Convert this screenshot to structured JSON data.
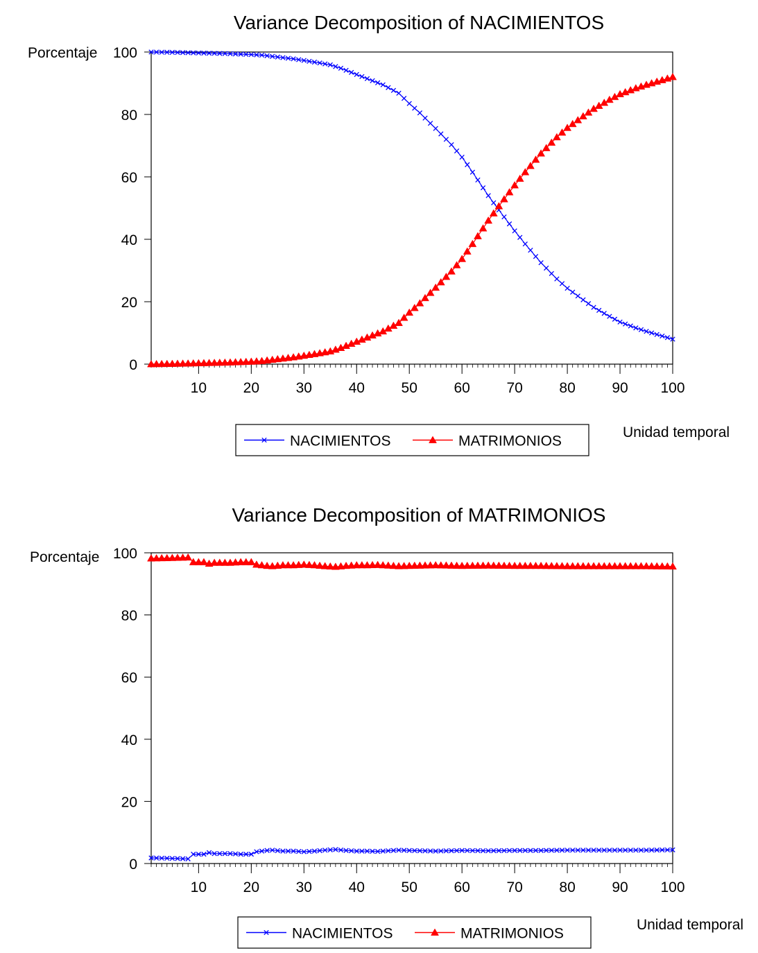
{
  "colors": {
    "nacimientos": "#0000ff",
    "matrimonios": "#ff0000"
  },
  "chart_data": [
    {
      "type": "line",
      "title": "Variance Decomposition of NACIMIENTOS",
      "ylabel": "Porcentaje",
      "xlabel": "Unidad temporal",
      "xlim": [
        1,
        100
      ],
      "ylim": [
        0,
        100
      ],
      "xticks": [
        10,
        20,
        30,
        40,
        50,
        60,
        70,
        80,
        90,
        100
      ],
      "yticks": [
        0,
        20,
        40,
        60,
        80,
        100
      ],
      "grid": false,
      "legend_position": "bottom",
      "series": [
        {
          "name": "NACIMIENTOS",
          "color": "#0000ff",
          "marker": "x",
          "x": [
            1,
            5,
            10,
            15,
            20,
            22,
            25,
            28,
            30,
            33,
            35,
            37,
            40,
            43,
            45,
            48,
            50,
            52,
            55,
            58,
            60,
            62,
            65,
            67,
            70,
            72,
            75,
            78,
            80,
            83,
            85,
            88,
            90,
            93,
            95,
            98,
            100
          ],
          "y": [
            100,
            99.9,
            99.7,
            99.5,
            99.2,
            99,
            98.4,
            97.8,
            97.3,
            96.5,
            95.9,
            94.8,
            92.8,
            90.8,
            89.5,
            86.8,
            83.5,
            80.5,
            75.5,
            70.3,
            66.3,
            61.5,
            54,
            49.4,
            42.7,
            38.5,
            32.5,
            27.3,
            24.3,
            20.6,
            18.2,
            15.3,
            13.5,
            11.6,
            10.5,
            9,
            8
          ]
        },
        {
          "name": "MATRIMONIOS",
          "color": "#ff0000",
          "marker": "triangle",
          "x": [
            1,
            5,
            10,
            15,
            20,
            22,
            25,
            28,
            30,
            33,
            35,
            37,
            40,
            43,
            45,
            48,
            50,
            52,
            55,
            58,
            60,
            62,
            65,
            67,
            70,
            72,
            75,
            78,
            80,
            83,
            85,
            88,
            90,
            93,
            95,
            98,
            100
          ],
          "y": [
            0,
            0.1,
            0.3,
            0.5,
            0.8,
            1,
            1.6,
            2.2,
            2.7,
            3.5,
            4.1,
            5.2,
            7.2,
            9.2,
            10.5,
            13.2,
            16.5,
            19.5,
            24.5,
            29.7,
            33.7,
            38.5,
            46,
            50.6,
            57.3,
            61.5,
            67.5,
            72.7,
            75.7,
            79.4,
            81.8,
            84.7,
            86.5,
            88.4,
            89.5,
            91,
            92
          ]
        }
      ]
    },
    {
      "type": "line",
      "title": "Variance Decomposition of MATRIMONIOS",
      "ylabel": "Porcentaje",
      "xlabel": "Unidad temporal",
      "xlim": [
        1,
        100
      ],
      "ylim": [
        0,
        100
      ],
      "xticks": [
        10,
        20,
        30,
        40,
        50,
        60,
        70,
        80,
        90,
        100
      ],
      "yticks": [
        0,
        20,
        40,
        60,
        80,
        100
      ],
      "grid": false,
      "legend_position": "bottom",
      "series": [
        {
          "name": "NACIMIENTOS",
          "color": "#0000ff",
          "marker": "x",
          "x": [
            1,
            4,
            8,
            9,
            11,
            12,
            13,
            16,
            18,
            20,
            21,
            23,
            24,
            26,
            28,
            30,
            32,
            34,
            36,
            38,
            40,
            42,
            44,
            46,
            48,
            50,
            55,
            60,
            65,
            70,
            75,
            80,
            85,
            90,
            95,
            100
          ],
          "y": [
            1.8,
            1.7,
            1.5,
            3,
            3,
            3.5,
            3.2,
            3.2,
            3,
            3,
            3.8,
            4.2,
            4.3,
            4,
            4,
            3.8,
            4,
            4.3,
            4.5,
            4.2,
            4,
            4,
            3.9,
            4.1,
            4.3,
            4.2,
            4,
            4.2,
            4.1,
            4.2,
            4.2,
            4.3,
            4.3,
            4.3,
            4.3,
            4.4
          ]
        },
        {
          "name": "MATRIMONIOS",
          "color": "#ff0000",
          "marker": "triangle",
          "x": [
            1,
            4,
            8,
            9,
            11,
            12,
            13,
            16,
            18,
            20,
            21,
            23,
            24,
            26,
            28,
            30,
            32,
            34,
            36,
            38,
            40,
            42,
            44,
            46,
            48,
            50,
            55,
            60,
            65,
            70,
            75,
            80,
            85,
            90,
            95,
            100
          ],
          "y": [
            98.2,
            98.3,
            98.5,
            97,
            97,
            96.5,
            96.8,
            96.8,
            97,
            97,
            96.2,
            95.8,
            95.7,
            96,
            96,
            96.2,
            96,
            95.7,
            95.5,
            95.8,
            96,
            96,
            96.1,
            95.9,
            95.7,
            95.8,
            96,
            95.8,
            95.9,
            95.8,
            95.8,
            95.7,
            95.7,
            95.7,
            95.7,
            95.6
          ]
        }
      ]
    }
  ]
}
